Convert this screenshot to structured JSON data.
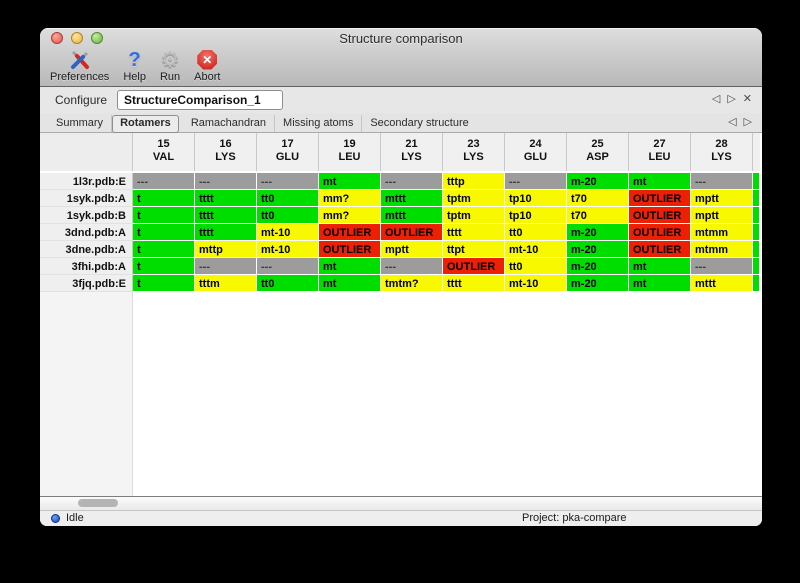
{
  "window": {
    "title": "Structure comparison"
  },
  "toolbar": {
    "buttons": [
      {
        "label": "Preferences",
        "icon": "tools-icon"
      },
      {
        "label": "Help",
        "icon": "question-icon"
      },
      {
        "label": "Run",
        "icon": "gear-icon"
      },
      {
        "label": "Abort",
        "icon": "abort-icon"
      }
    ]
  },
  "icons": {
    "nav_prev": "◁",
    "nav_next": "▷",
    "close": "✕",
    "gear": "⚙",
    "help": "?",
    "abort_x": "✕"
  },
  "configure": {
    "label": "Configure",
    "value": "StructureComparison_1"
  },
  "tabs": {
    "items": [
      "Summary",
      "Rotamers",
      "Ramachandran",
      "Missing atoms",
      "Secondary structure"
    ],
    "active": "Rotamers"
  },
  "colors": {
    "green": "#00DE00",
    "yellow": "#F8F800",
    "red": "#EC2004",
    "gray": "#9C9C9C"
  },
  "table": {
    "columns": [
      {
        "num": "15",
        "res": "VAL"
      },
      {
        "num": "16",
        "res": "LYS"
      },
      {
        "num": "17",
        "res": "GLU"
      },
      {
        "num": "19",
        "res": "LEU"
      },
      {
        "num": "21",
        "res": "LYS"
      },
      {
        "num": "23",
        "res": "LYS"
      },
      {
        "num": "24",
        "res": "GLU"
      },
      {
        "num": "25",
        "res": "ASP"
      },
      {
        "num": "27",
        "res": "LEU"
      },
      {
        "num": "28",
        "res": "LYS"
      }
    ],
    "rows": [
      {
        "label": "1l3r.pdb:E",
        "edge": "green",
        "cells": [
          {
            "t": "---",
            "c": "gray"
          },
          {
            "t": "---",
            "c": "gray"
          },
          {
            "t": "---",
            "c": "gray"
          },
          {
            "t": "mt",
            "c": "green"
          },
          {
            "t": "---",
            "c": "gray"
          },
          {
            "t": "tttp",
            "c": "yellow"
          },
          {
            "t": "---",
            "c": "gray"
          },
          {
            "t": "m-20",
            "c": "green"
          },
          {
            "t": "mt",
            "c": "green"
          },
          {
            "t": "---",
            "c": "gray"
          }
        ]
      },
      {
        "label": "1syk.pdb:A",
        "edge": "green",
        "cells": [
          {
            "t": "t",
            "c": "green"
          },
          {
            "t": "tttt",
            "c": "green"
          },
          {
            "t": "tt0",
            "c": "green"
          },
          {
            "t": "mm?",
            "c": "yellow"
          },
          {
            "t": "mttt",
            "c": "green"
          },
          {
            "t": "tptm",
            "c": "yellow"
          },
          {
            "t": "tp10",
            "c": "yellow"
          },
          {
            "t": "t70",
            "c": "yellow"
          },
          {
            "t": "OUTLIER",
            "c": "red"
          },
          {
            "t": "mptt",
            "c": "yellow"
          }
        ]
      },
      {
        "label": "1syk.pdb:B",
        "edge": "green",
        "cells": [
          {
            "t": "t",
            "c": "green"
          },
          {
            "t": "tttt",
            "c": "green"
          },
          {
            "t": "tt0",
            "c": "green"
          },
          {
            "t": "mm?",
            "c": "yellow"
          },
          {
            "t": "mttt",
            "c": "green"
          },
          {
            "t": "tptm",
            "c": "yellow"
          },
          {
            "t": "tp10",
            "c": "yellow"
          },
          {
            "t": "t70",
            "c": "yellow"
          },
          {
            "t": "OUTLIER",
            "c": "red"
          },
          {
            "t": "mptt",
            "c": "yellow"
          }
        ]
      },
      {
        "label": "3dnd.pdb:A",
        "edge": "green",
        "cells": [
          {
            "t": "t",
            "c": "green"
          },
          {
            "t": "tttt",
            "c": "green"
          },
          {
            "t": "mt-10",
            "c": "yellow"
          },
          {
            "t": "OUTLIER",
            "c": "red"
          },
          {
            "t": "OUTLIER",
            "c": "red"
          },
          {
            "t": "tttt",
            "c": "yellow"
          },
          {
            "t": "tt0",
            "c": "yellow"
          },
          {
            "t": "m-20",
            "c": "green"
          },
          {
            "t": "OUTLIER",
            "c": "red"
          },
          {
            "t": "mtmm",
            "c": "yellow"
          }
        ]
      },
      {
        "label": "3dne.pdb:A",
        "edge": "green",
        "cells": [
          {
            "t": "t",
            "c": "green"
          },
          {
            "t": "mttp",
            "c": "yellow"
          },
          {
            "t": "mt-10",
            "c": "yellow"
          },
          {
            "t": "OUTLIER",
            "c": "red"
          },
          {
            "t": "mptt",
            "c": "yellow"
          },
          {
            "t": "ttpt",
            "c": "yellow"
          },
          {
            "t": "mt-10",
            "c": "yellow"
          },
          {
            "t": "m-20",
            "c": "green"
          },
          {
            "t": "OUTLIER",
            "c": "red"
          },
          {
            "t": "mtmm",
            "c": "yellow"
          }
        ]
      },
      {
        "label": "3fhi.pdb:A",
        "edge": "green",
        "cells": [
          {
            "t": "t",
            "c": "green"
          },
          {
            "t": "---",
            "c": "gray"
          },
          {
            "t": "---",
            "c": "gray"
          },
          {
            "t": "mt",
            "c": "green"
          },
          {
            "t": "---",
            "c": "gray"
          },
          {
            "t": "OUTLIER",
            "c": "red"
          },
          {
            "t": "tt0",
            "c": "yellow"
          },
          {
            "t": "m-20",
            "c": "green"
          },
          {
            "t": "mt",
            "c": "green"
          },
          {
            "t": "---",
            "c": "gray"
          }
        ]
      },
      {
        "label": "3fjq.pdb:E",
        "edge": "green",
        "cells": [
          {
            "t": "t",
            "c": "green"
          },
          {
            "t": "tttm",
            "c": "yellow"
          },
          {
            "t": "tt0",
            "c": "green"
          },
          {
            "t": "mt",
            "c": "green"
          },
          {
            "t": "tmtm?",
            "c": "yellow"
          },
          {
            "t": "tttt",
            "c": "yellow"
          },
          {
            "t": "mt-10",
            "c": "yellow"
          },
          {
            "t": "m-20",
            "c": "green"
          },
          {
            "t": "mt",
            "c": "green"
          },
          {
            "t": "mttt",
            "c": "yellow"
          }
        ]
      }
    ]
  },
  "statusbar": {
    "status": "Idle",
    "project": "Project: pka-compare"
  }
}
